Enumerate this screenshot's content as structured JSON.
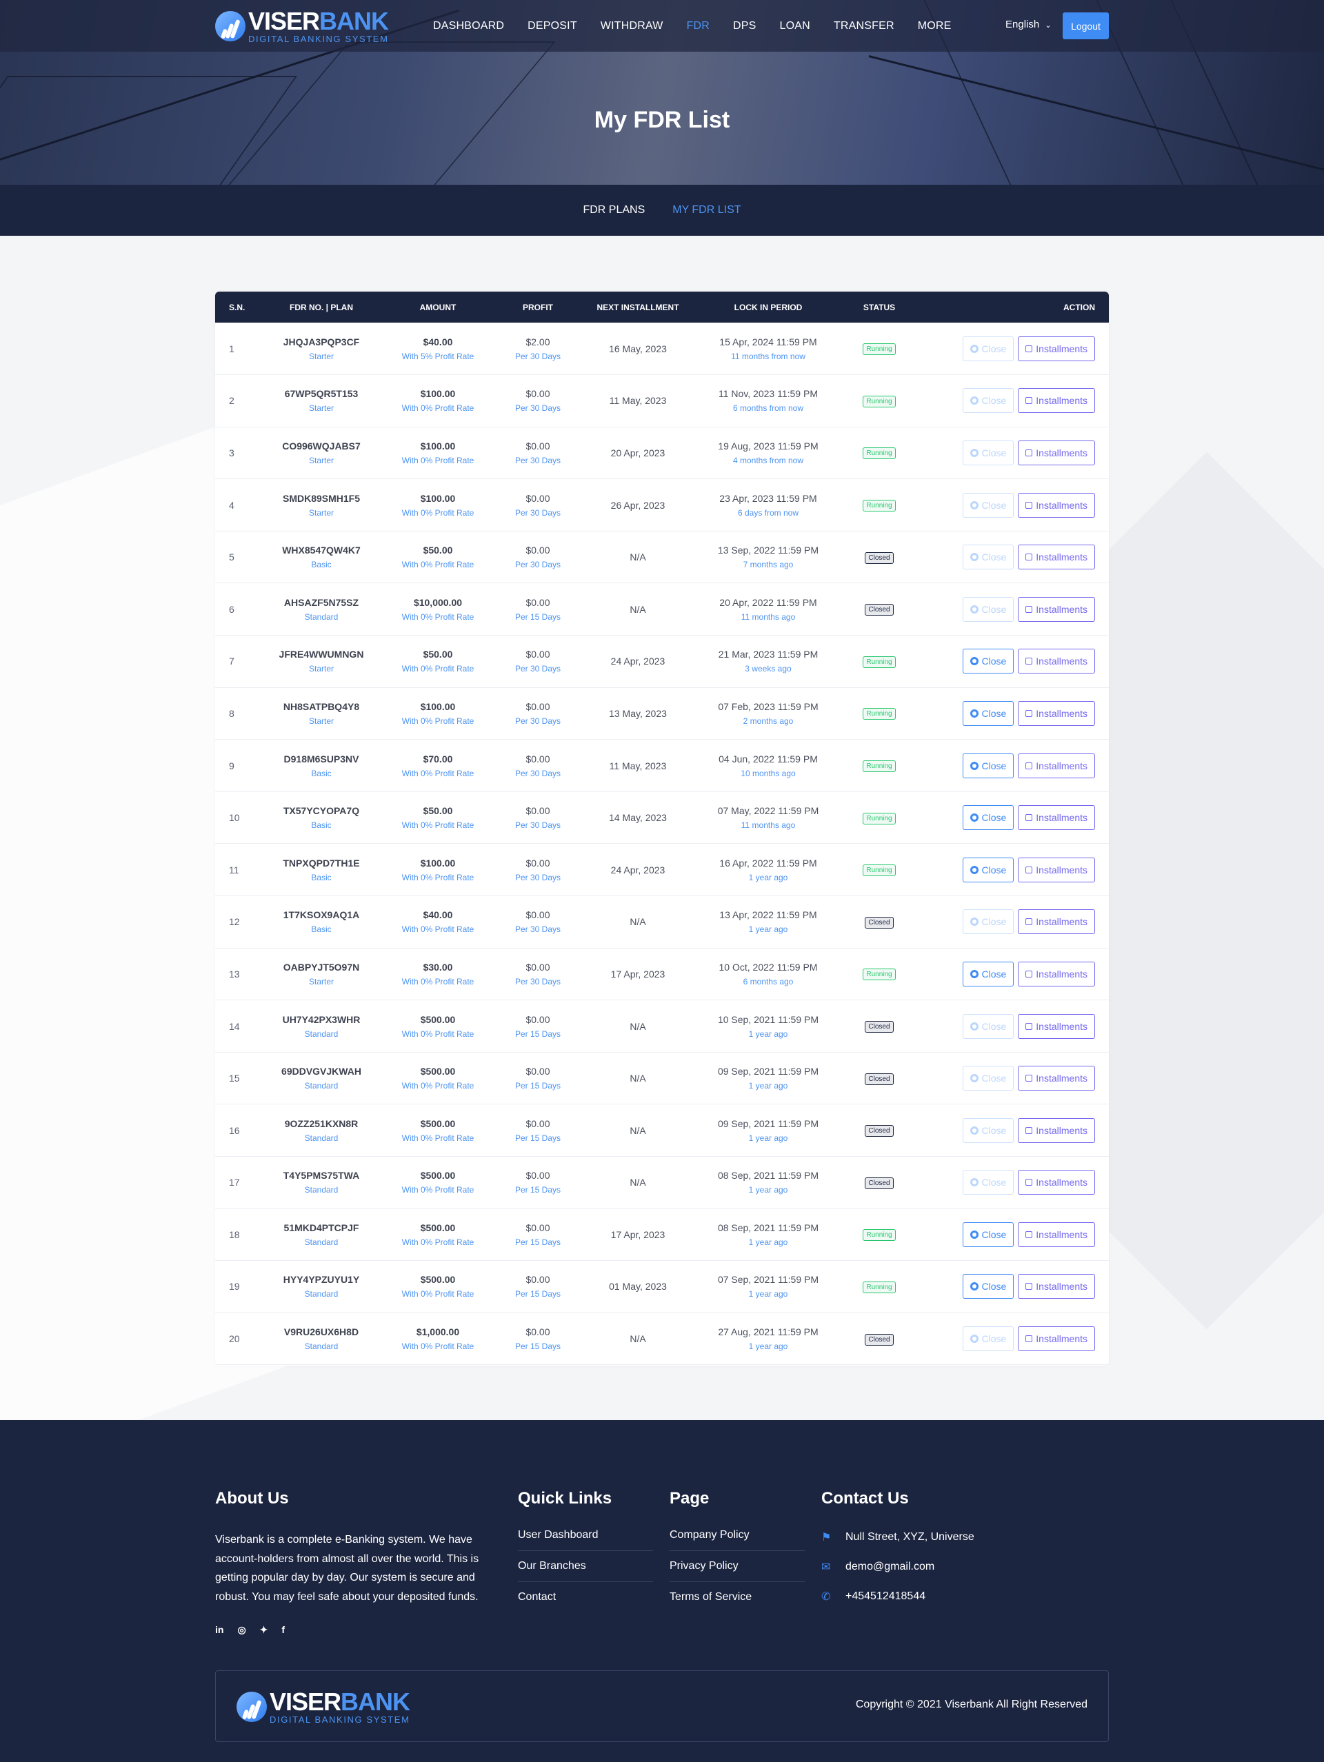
{
  "brand": {
    "name_part1": "VISER",
    "name_part2": "BANK",
    "tagline": "DIGITAL BANKING SYSTEM"
  },
  "nav": {
    "items": [
      "DASHBOARD",
      "DEPOSIT",
      "WITHDRAW",
      "FDR",
      "DPS",
      "LOAN",
      "TRANSFER",
      "MORE"
    ],
    "active": "FDR"
  },
  "header": {
    "language": "English",
    "logout_label": "Logout"
  },
  "page_title": "My FDR List",
  "subnav": {
    "items": [
      "FDR PLANS",
      "MY FDR LIST"
    ],
    "active": "MY FDR LIST"
  },
  "table": {
    "headers": [
      "S.N.",
      "FDR NO. | PLAN",
      "AMOUNT",
      "PROFIT",
      "NEXT INSTALLMENT",
      "LOCK IN PERIOD",
      "STATUS",
      "ACTION"
    ],
    "close_label": "Close",
    "installments_label": "Installments",
    "rows": [
      {
        "sn": "1",
        "fdr": "JHQJA3PQP3CF",
        "plan": "Starter",
        "amount": "$40.00",
        "rate": "With 5% Profit Rate",
        "profit": "$2.00",
        "per": "Per 30 Days",
        "next": "16 May, 2023",
        "lock": "15 Apr, 2024 11:59 PM",
        "rel": "11 months from now",
        "status": "Running",
        "close_enabled": false
      },
      {
        "sn": "2",
        "fdr": "67WP5QR5T153",
        "plan": "Starter",
        "amount": "$100.00",
        "rate": "With 0% Profit Rate",
        "profit": "$0.00",
        "per": "Per 30 Days",
        "next": "11 May, 2023",
        "lock": "11 Nov, 2023 11:59 PM",
        "rel": "6 months from now",
        "status": "Running",
        "close_enabled": false
      },
      {
        "sn": "3",
        "fdr": "CO996WQJABS7",
        "plan": "Starter",
        "amount": "$100.00",
        "rate": "With 0% Profit Rate",
        "profit": "$0.00",
        "per": "Per 30 Days",
        "next": "20 Apr, 2023",
        "lock": "19 Aug, 2023 11:59 PM",
        "rel": "4 months from now",
        "status": "Running",
        "close_enabled": false
      },
      {
        "sn": "4",
        "fdr": "SMDK89SMH1F5",
        "plan": "Starter",
        "amount": "$100.00",
        "rate": "With 0% Profit Rate",
        "profit": "$0.00",
        "per": "Per 30 Days",
        "next": "26 Apr, 2023",
        "lock": "23 Apr, 2023 11:59 PM",
        "rel": "6 days from now",
        "status": "Running",
        "close_enabled": false
      },
      {
        "sn": "5",
        "fdr": "WHX8547QW4K7",
        "plan": "Basic",
        "amount": "$50.00",
        "rate": "With 0% Profit Rate",
        "profit": "$0.00",
        "per": "Per 30 Days",
        "next": "N/A",
        "lock": "13 Sep, 2022 11:59 PM",
        "rel": "7 months ago",
        "status": "Closed",
        "close_enabled": false
      },
      {
        "sn": "6",
        "fdr": "AHSAZF5N75SZ",
        "plan": "Standard",
        "amount": "$10,000.00",
        "rate": "With 0% Profit Rate",
        "profit": "$0.00",
        "per": "Per 15 Days",
        "next": "N/A",
        "lock": "20 Apr, 2022 11:59 PM",
        "rel": "11 months ago",
        "status": "Closed",
        "close_enabled": false
      },
      {
        "sn": "7",
        "fdr": "JFRE4WWUMNGN",
        "plan": "Starter",
        "amount": "$50.00",
        "rate": "With 0% Profit Rate",
        "profit": "$0.00",
        "per": "Per 30 Days",
        "next": "24 Apr, 2023",
        "lock": "21 Mar, 2023 11:59 PM",
        "rel": "3 weeks ago",
        "status": "Running",
        "close_enabled": true
      },
      {
        "sn": "8",
        "fdr": "NH8SATPBQ4Y8",
        "plan": "Starter",
        "amount": "$100.00",
        "rate": "With 0% Profit Rate",
        "profit": "$0.00",
        "per": "Per 30 Days",
        "next": "13 May, 2023",
        "lock": "07 Feb, 2023 11:59 PM",
        "rel": "2 months ago",
        "status": "Running",
        "close_enabled": true
      },
      {
        "sn": "9",
        "fdr": "D918M6SUP3NV",
        "plan": "Basic",
        "amount": "$70.00",
        "rate": "With 0% Profit Rate",
        "profit": "$0.00",
        "per": "Per 30 Days",
        "next": "11 May, 2023",
        "lock": "04 Jun, 2022 11:59 PM",
        "rel": "10 months ago",
        "status": "Running",
        "close_enabled": true
      },
      {
        "sn": "10",
        "fdr": "TX57YCYOPA7Q",
        "plan": "Basic",
        "amount": "$50.00",
        "rate": "With 0% Profit Rate",
        "profit": "$0.00",
        "per": "Per 30 Days",
        "next": "14 May, 2023",
        "lock": "07 May, 2022 11:59 PM",
        "rel": "11 months ago",
        "status": "Running",
        "close_enabled": true
      },
      {
        "sn": "11",
        "fdr": "TNPXQPD7TH1E",
        "plan": "Basic",
        "amount": "$100.00",
        "rate": "With 0% Profit Rate",
        "profit": "$0.00",
        "per": "Per 30 Days",
        "next": "24 Apr, 2023",
        "lock": "16 Apr, 2022 11:59 PM",
        "rel": "1 year ago",
        "status": "Running",
        "close_enabled": true
      },
      {
        "sn": "12",
        "fdr": "1T7KSOX9AQ1A",
        "plan": "Basic",
        "amount": "$40.00",
        "rate": "With 0% Profit Rate",
        "profit": "$0.00",
        "per": "Per 30 Days",
        "next": "N/A",
        "lock": "13 Apr, 2022 11:59 PM",
        "rel": "1 year ago",
        "status": "Closed",
        "close_enabled": false
      },
      {
        "sn": "13",
        "fdr": "OABPYJT5O97N",
        "plan": "Starter",
        "amount": "$30.00",
        "rate": "With 0% Profit Rate",
        "profit": "$0.00",
        "per": "Per 30 Days",
        "next": "17 Apr, 2023",
        "lock": "10 Oct, 2022 11:59 PM",
        "rel": "6 months ago",
        "status": "Running",
        "close_enabled": true
      },
      {
        "sn": "14",
        "fdr": "UH7Y42PX3WHR",
        "plan": "Standard",
        "amount": "$500.00",
        "rate": "With 0% Profit Rate",
        "profit": "$0.00",
        "per": "Per 15 Days",
        "next": "N/A",
        "lock": "10 Sep, 2021 11:59 PM",
        "rel": "1 year ago",
        "status": "Closed",
        "close_enabled": false
      },
      {
        "sn": "15",
        "fdr": "69DDVGVJKWAH",
        "plan": "Standard",
        "amount": "$500.00",
        "rate": "With 0% Profit Rate",
        "profit": "$0.00",
        "per": "Per 15 Days",
        "next": "N/A",
        "lock": "09 Sep, 2021 11:59 PM",
        "rel": "1 year ago",
        "status": "Closed",
        "close_enabled": false
      },
      {
        "sn": "16",
        "fdr": "9OZZ251KXN8R",
        "plan": "Standard",
        "amount": "$500.00",
        "rate": "With 0% Profit Rate",
        "profit": "$0.00",
        "per": "Per 15 Days",
        "next": "N/A",
        "lock": "09 Sep, 2021 11:59 PM",
        "rel": "1 year ago",
        "status": "Closed",
        "close_enabled": false
      },
      {
        "sn": "17",
        "fdr": "T4Y5PMS75TWA",
        "plan": "Standard",
        "amount": "$500.00",
        "rate": "With 0% Profit Rate",
        "profit": "$0.00",
        "per": "Per 15 Days",
        "next": "N/A",
        "lock": "08 Sep, 2021 11:59 PM",
        "rel": "1 year ago",
        "status": "Closed",
        "close_enabled": false
      },
      {
        "sn": "18",
        "fdr": "51MKD4PTCPJF",
        "plan": "Standard",
        "amount": "$500.00",
        "rate": "With 0% Profit Rate",
        "profit": "$0.00",
        "per": "Per 15 Days",
        "next": "17 Apr, 2023",
        "lock": "08 Sep, 2021 11:59 PM",
        "rel": "1 year ago",
        "status": "Running",
        "close_enabled": true
      },
      {
        "sn": "19",
        "fdr": "HYY4YPZUYU1Y",
        "plan": "Standard",
        "amount": "$500.00",
        "rate": "With 0% Profit Rate",
        "profit": "$0.00",
        "per": "Per 15 Days",
        "next": "01 May, 2023",
        "lock": "07 Sep, 2021 11:59 PM",
        "rel": "1 year ago",
        "status": "Running",
        "close_enabled": true
      },
      {
        "sn": "20",
        "fdr": "V9RU26UX6H8D",
        "plan": "Standard",
        "amount": "$1,000.00",
        "rate": "With 0% Profit Rate",
        "profit": "$0.00",
        "per": "Per 15 Days",
        "next": "N/A",
        "lock": "27 Aug, 2021 11:59 PM",
        "rel": "1 year ago",
        "status": "Closed",
        "close_enabled": false
      }
    ]
  },
  "footer": {
    "about": {
      "title": "About Us",
      "text": "Viserbank is a complete e-Banking system. We have account-holders from almost all over the world. This is getting popular day by day. Our system is secure and robust. You may feel safe about your deposited funds."
    },
    "social_icons": [
      "linkedin-icon",
      "instagram-icon",
      "twitter-icon",
      "facebook-icon"
    ],
    "quick_links": {
      "title": "Quick Links",
      "items": [
        "User Dashboard",
        "Our Branches",
        "Contact"
      ]
    },
    "page": {
      "title": "Page",
      "items": [
        "Company Policy",
        "Privacy Policy",
        "Terms of Service"
      ]
    },
    "contact": {
      "title": "Contact Us",
      "address": "Null Street, XYZ, Universe",
      "email": "demo@gmail.com",
      "phone": "+454512418544"
    },
    "copyright": "Copyright © 2021 Viserbank All Right Reserved"
  },
  "colors": {
    "navy": "#1c2540",
    "accent": "#4d94f2",
    "running": "#28c76f",
    "installments": "#7367f0"
  }
}
